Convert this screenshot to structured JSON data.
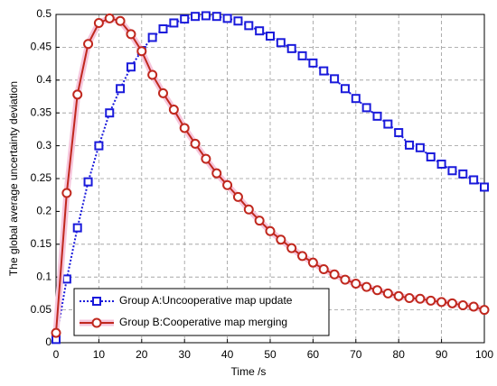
{
  "chart_data": {
    "type": "line",
    "xlabel": "Time /s",
    "ylabel": "The global average uncertainty deviation",
    "x": [
      0,
      2.5,
      5,
      7.5,
      10,
      12.5,
      15,
      17.5,
      20,
      22.5,
      25,
      27.5,
      30,
      32.5,
      35,
      37.5,
      40,
      42.5,
      45,
      47.5,
      50,
      52.5,
      55,
      57.5,
      60,
      62.5,
      65,
      67.5,
      70,
      72.5,
      75,
      77.5,
      80,
      82.5,
      85,
      87.5,
      90,
      92.5,
      95,
      97.5,
      100
    ],
    "series": [
      {
        "name": "Group A:Uncooperative map update",
        "color": "#1a1adb",
        "linestyle": "dotted",
        "marker": "square",
        "values": [
          0.005,
          0.097,
          0.175,
          0.245,
          0.3,
          0.35,
          0.387,
          0.42,
          0.445,
          0.465,
          0.478,
          0.487,
          0.493,
          0.497,
          0.498,
          0.497,
          0.494,
          0.49,
          0.483,
          0.475,
          0.467,
          0.457,
          0.448,
          0.437,
          0.426,
          0.414,
          0.402,
          0.387,
          0.372,
          0.358,
          0.345,
          0.333,
          0.32,
          0.301,
          0.297,
          0.283,
          0.272,
          0.262,
          0.257,
          0.248,
          0.237
        ]
      },
      {
        "name": "Group B:Cooperative map merging",
        "color": "#c0281e",
        "linestyle": "solid",
        "marker": "circle",
        "values": [
          0.015,
          0.228,
          0.378,
          0.455,
          0.487,
          0.494,
          0.49,
          0.47,
          0.444,
          0.408,
          0.38,
          0.355,
          0.327,
          0.303,
          0.28,
          0.258,
          0.24,
          0.222,
          0.203,
          0.186,
          0.17,
          0.157,
          0.144,
          0.132,
          0.122,
          0.112,
          0.104,
          0.096,
          0.09,
          0.085,
          0.08,
          0.075,
          0.071,
          0.068,
          0.067,
          0.064,
          0.062,
          0.06,
          0.057,
          0.055,
          0.05
        ]
      }
    ],
    "xlim": [
      0,
      100
    ],
    "xticks": [
      0,
      10,
      20,
      30,
      40,
      50,
      60,
      70,
      80,
      90,
      100
    ],
    "ylim": [
      0,
      0.5
    ],
    "yticks": [
      0,
      0.05,
      0.1,
      0.15,
      0.2,
      0.25,
      0.3,
      0.35,
      0.4,
      0.45,
      0.5
    ],
    "grid": true,
    "legend": "lower left"
  }
}
